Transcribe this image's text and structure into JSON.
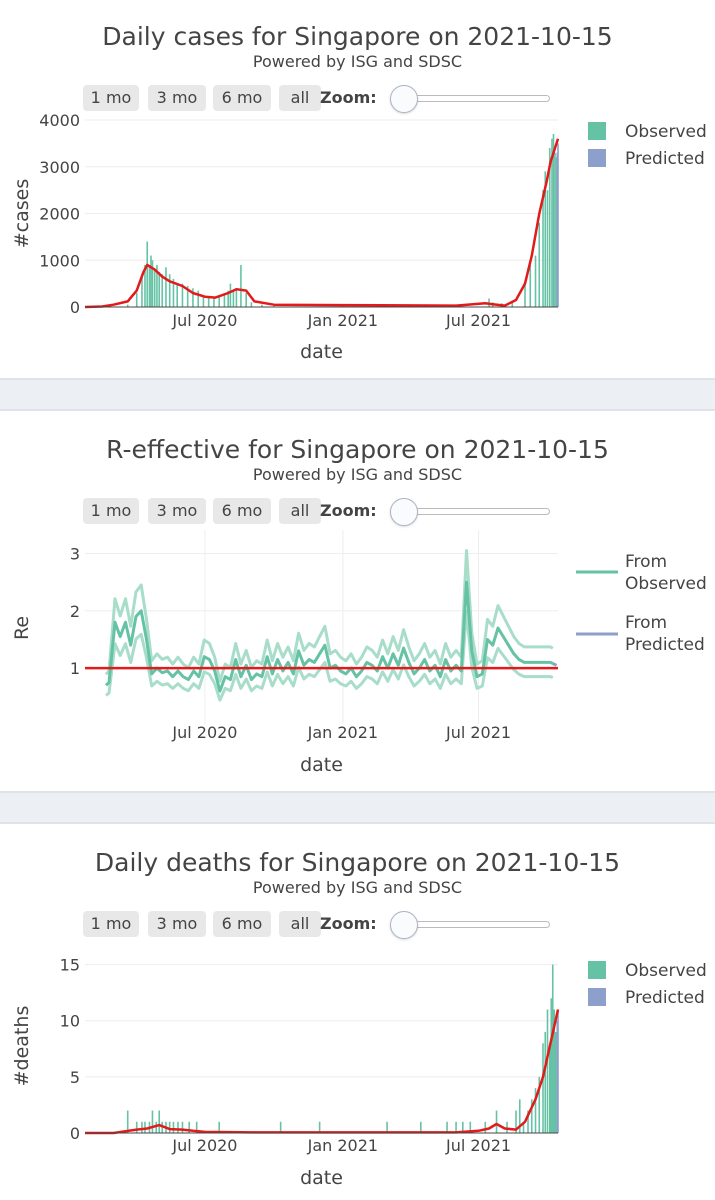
{
  "zoom_controls": {
    "buttons": [
      "1 mo",
      "3 mo",
      "6 mo",
      "all"
    ],
    "zoom_label": "Zoom:"
  },
  "colors": {
    "observed": "#66c2a5",
    "predicted": "#8da0cb",
    "fit_line": "#e31a1c",
    "re_band": "#a8ddc9",
    "re_center": "#66c2a5"
  },
  "chart_data": [
    {
      "type": "bar",
      "title": "Daily cases for Singapore on 2021-10-15",
      "subtitle": "Powered by ISG and SDSC",
      "xlabel": "date",
      "ylabel": "#cases",
      "xlim": [
        "2020-01-23",
        "2021-10-15"
      ],
      "ylim": [
        0,
        4000
      ],
      "yticks": [
        0,
        1000,
        2000,
        3000,
        4000
      ],
      "xticks": [
        {
          "date": "2020-07-01",
          "label": "Jul 2020"
        },
        {
          "date": "2021-01-01",
          "label": "Jan 2021"
        },
        {
          "date": "2021-07-01",
          "label": "Jul 2021"
        }
      ],
      "legend": {
        "placement": "top-right",
        "entries": [
          "Observed",
          "Predicted"
        ]
      },
      "observed": {
        "x": [
          "2020-03-20",
          "2020-04-01",
          "2020-04-08",
          "2020-04-12",
          "2020-04-15",
          "2020-04-18",
          "2020-04-20",
          "2020-04-22",
          "2020-04-25",
          "2020-04-28",
          "2020-05-01",
          "2020-05-05",
          "2020-05-10",
          "2020-05-15",
          "2020-05-20",
          "2020-05-25",
          "2020-06-01",
          "2020-06-08",
          "2020-06-15",
          "2020-06-22",
          "2020-06-29",
          "2020-07-06",
          "2020-07-13",
          "2020-07-20",
          "2020-07-27",
          "2020-08-01",
          "2020-08-04",
          "2020-08-08",
          "2020-08-12",
          "2020-08-18",
          "2020-08-25",
          "2020-09-01",
          "2020-09-15",
          "2020-10-01",
          "2021-01-01",
          "2021-04-01",
          "2021-06-01",
          "2021-07-15",
          "2021-07-20",
          "2021-08-01",
          "2021-08-15",
          "2021-09-01",
          "2021-09-08",
          "2021-09-15",
          "2021-09-20",
          "2021-09-25",
          "2021-09-28",
          "2021-10-01",
          "2021-10-04",
          "2021-10-07",
          "2021-10-09",
          "2021-10-11",
          "2021-10-13"
        ],
        "values": [
          50,
          300,
          700,
          900,
          1400,
          900,
          1100,
          1000,
          800,
          900,
          750,
          700,
          850,
          700,
          600,
          500,
          500,
          450,
          400,
          350,
          250,
          200,
          180,
          250,
          300,
          350,
          500,
          350,
          400,
          900,
          300,
          100,
          50,
          20,
          30,
          30,
          20,
          180,
          100,
          80,
          120,
          500,
          900,
          1100,
          1800,
          2500,
          2900,
          2500,
          3400,
          3600,
          3700,
          3300,
          3200
        ]
      },
      "predicted": {
        "x": [
          "2021-10-14",
          "2021-10-15"
        ],
        "values": [
          3300,
          3500
        ]
      },
      "fit_line": {
        "x": [
          "2020-01-23",
          "2020-02-15",
          "2020-03-01",
          "2020-03-20",
          "2020-04-01",
          "2020-04-10",
          "2020-04-15",
          "2020-04-25",
          "2020-05-05",
          "2020-05-15",
          "2020-06-01",
          "2020-06-15",
          "2020-07-01",
          "2020-07-15",
          "2020-08-01",
          "2020-08-12",
          "2020-08-25",
          "2020-09-05",
          "2020-10-01",
          "2021-01-01",
          "2021-06-01",
          "2021-07-10",
          "2021-07-20",
          "2021-08-05",
          "2021-08-20",
          "2021-09-01",
          "2021-09-10",
          "2021-09-20",
          "2021-09-30",
          "2021-10-05",
          "2021-10-15"
        ],
        "values": [
          0,
          10,
          50,
          120,
          350,
          750,
          900,
          800,
          650,
          550,
          450,
          300,
          220,
          200,
          300,
          380,
          350,
          120,
          50,
          40,
          30,
          80,
          60,
          30,
          150,
          500,
          1100,
          2000,
          2700,
          3100,
          3600
        ]
      }
    },
    {
      "type": "line",
      "title": "R-effective for Singapore on 2021-10-15",
      "subtitle": "Powered by ISG and SDSC",
      "xlabel": "date",
      "ylabel": "Re",
      "xlim": [
        "2020-01-23",
        "2021-10-15"
      ],
      "ylim": [
        0.2,
        3.2
      ],
      "yticks": [
        1,
        2,
        3
      ],
      "xticks": [
        {
          "date": "2020-07-01",
          "label": "Jul 2020"
        },
        {
          "date": "2021-01-01",
          "label": "Jan 2021"
        },
        {
          "date": "2021-07-01",
          "label": "Jul 2021"
        }
      ],
      "grid": true,
      "reference_line": 1,
      "legend": {
        "placement": "top-right",
        "entries": [
          "From\nObserved",
          "From\nPredicted"
        ]
      },
      "observed": {
        "x": [
          "2020-02-20",
          "2020-02-24",
          "2020-03-03",
          "2020-03-10",
          "2020-03-17",
          "2020-03-24",
          "2020-03-31",
          "2020-04-07",
          "2020-04-14",
          "2020-04-21",
          "2020-04-28",
          "2020-05-05",
          "2020-05-12",
          "2020-05-19",
          "2020-05-26",
          "2020-06-02",
          "2020-06-09",
          "2020-06-16",
          "2020-06-23",
          "2020-06-30",
          "2020-07-07",
          "2020-07-14",
          "2020-07-21",
          "2020-07-28",
          "2020-08-04",
          "2020-08-11",
          "2020-08-18",
          "2020-08-25",
          "2020-09-01",
          "2020-09-08",
          "2020-09-15",
          "2020-09-22",
          "2020-09-29",
          "2020-10-06",
          "2020-10-13",
          "2020-10-20",
          "2020-10-27",
          "2020-11-03",
          "2020-11-10",
          "2020-11-17",
          "2020-11-24",
          "2020-12-01",
          "2020-12-08",
          "2020-12-15",
          "2020-12-22",
          "2020-12-29",
          "2021-01-05",
          "2021-01-12",
          "2021-01-19",
          "2021-01-26",
          "2021-02-02",
          "2021-02-09",
          "2021-02-16",
          "2021-02-23",
          "2021-03-02",
          "2021-03-09",
          "2021-03-16",
          "2021-03-23",
          "2021-03-30",
          "2021-04-06",
          "2021-04-13",
          "2021-04-20",
          "2021-04-27",
          "2021-05-04",
          "2021-05-11",
          "2021-05-18",
          "2021-05-25",
          "2021-06-01",
          "2021-06-08",
          "2021-06-15",
          "2021-06-22",
          "2021-06-29",
          "2021-07-06",
          "2021-07-13",
          "2021-07-20",
          "2021-07-27",
          "2021-08-03",
          "2021-08-10",
          "2021-08-17",
          "2021-08-24",
          "2021-08-31",
          "2021-09-07",
          "2021-09-14",
          "2021-09-21",
          "2021-09-28",
          "2021-10-05",
          "2021-10-08"
        ],
        "values": [
          0.7,
          0.75,
          1.8,
          1.55,
          1.8,
          1.4,
          1.9,
          2.0,
          1.5,
          0.9,
          1.0,
          0.92,
          0.95,
          0.85,
          0.95,
          0.85,
          0.8,
          0.95,
          0.85,
          1.2,
          1.15,
          0.95,
          0.6,
          0.85,
          0.8,
          1.15,
          0.85,
          1.05,
          0.8,
          0.9,
          0.85,
          1.2,
          0.9,
          1.15,
          0.95,
          1.1,
          0.9,
          1.3,
          1.05,
          1.15,
          1.1,
          1.25,
          1.4,
          1.0,
          1.05,
          0.95,
          0.9,
          1.0,
          0.85,
          0.95,
          1.1,
          1.05,
          0.95,
          1.2,
          1.0,
          1.25,
          1.05,
          1.35,
          1.1,
          0.9,
          1.0,
          1.15,
          0.95,
          1.05,
          0.85,
          1.15,
          0.95,
          1.05,
          0.95,
          2.5,
          1.3,
          0.85,
          0.9,
          1.5,
          1.4,
          1.7,
          1.55,
          1.4,
          1.25,
          1.15,
          1.1,
          1.1,
          1.1,
          1.1,
          1.1,
          1.1,
          1.08
        ]
      },
      "predicted": {
        "x": [
          "2021-10-08",
          "2021-10-13"
        ],
        "values": [
          1.08,
          1.05
        ]
      }
    },
    {
      "type": "bar",
      "title": "Daily deaths for Singapore on 2021-10-15",
      "subtitle": "Powered by ISG and SDSC",
      "xlabel": "date",
      "ylabel": "#deaths",
      "xlim": [
        "2020-01-23",
        "2021-10-15"
      ],
      "ylim": [
        0,
        15.5
      ],
      "yticks": [
        0,
        5,
        10,
        15
      ],
      "xticks": [
        {
          "date": "2020-07-01",
          "label": "Jul 2020"
        },
        {
          "date": "2021-01-01",
          "label": "Jan 2021"
        },
        {
          "date": "2021-07-01",
          "label": "Jul 2021"
        }
      ],
      "legend": {
        "placement": "top-right",
        "entries": [
          "Observed",
          "Predicted"
        ]
      },
      "observed": {
        "x": [
          "2020-03-20",
          "2020-04-01",
          "2020-04-08",
          "2020-04-12",
          "2020-04-18",
          "2020-04-22",
          "2020-04-27",
          "2020-05-01",
          "2020-05-05",
          "2020-05-10",
          "2020-05-15",
          "2020-05-20",
          "2020-05-26",
          "2020-06-01",
          "2020-06-10",
          "2020-06-20",
          "2020-07-20",
          "2020-10-10",
          "2020-12-01",
          "2021-03-01",
          "2021-04-15",
          "2021-05-20",
          "2021-06-01",
          "2021-06-10",
          "2021-06-20",
          "2021-07-10",
          "2021-07-25",
          "2021-08-08",
          "2021-08-20",
          "2021-08-25",
          "2021-08-30",
          "2021-09-05",
          "2021-09-10",
          "2021-09-15",
          "2021-09-20",
          "2021-09-25",
          "2021-09-28",
          "2021-10-01",
          "2021-10-04",
          "2021-10-06",
          "2021-10-08",
          "2021-10-10",
          "2021-10-12",
          "2021-10-13"
        ],
        "values": [
          2,
          1,
          1,
          1,
          1,
          2,
          1,
          2,
          1,
          1,
          1,
          1,
          1,
          1,
          1,
          1,
          1,
          1,
          1,
          1,
          1,
          1,
          1,
          1,
          1,
          1,
          2,
          1,
          2,
          3,
          1,
          2,
          3,
          4,
          5,
          8,
          9,
          11,
          8,
          12,
          15,
          11,
          9,
          8
        ]
      },
      "predicted": {
        "x": [
          "2021-10-14",
          "2021-10-15"
        ],
        "values": [
          10,
          11
        ]
      },
      "fit_line": {
        "x": [
          "2020-01-23",
          "2020-03-01",
          "2020-04-01",
          "2020-04-15",
          "2020-05-01",
          "2020-05-15",
          "2020-06-01",
          "2020-06-15",
          "2020-07-01",
          "2020-09-01",
          "2021-01-01",
          "2021-06-01",
          "2021-07-01",
          "2021-07-15",
          "2021-07-25",
          "2021-08-05",
          "2021-08-20",
          "2021-09-01",
          "2021-09-15",
          "2021-09-25",
          "2021-10-05",
          "2021-10-15"
        ],
        "values": [
          0,
          0,
          0.3,
          0.4,
          0.7,
          0.35,
          0.3,
          0.2,
          0.1,
          0.05,
          0.05,
          0.05,
          0.2,
          0.4,
          0.8,
          0.4,
          0.3,
          1.0,
          3.0,
          5.0,
          8.0,
          11.0
        ]
      }
    }
  ]
}
